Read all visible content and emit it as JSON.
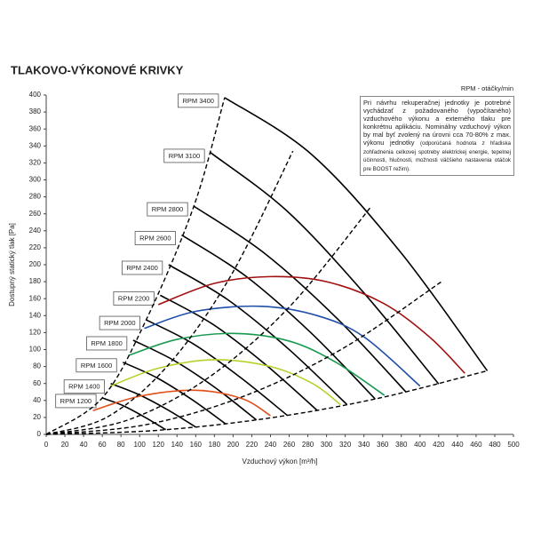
{
  "chart_data": {
    "type": "line",
    "title": "TLAKOVO-VÝKONOVÉ KRIVKY",
    "legend_title": "RPM - otáčky/min",
    "note": {
      "main": "Pri návrhu rekuperačnej jednotky je potrebné vychádzať z požadovaného (vypočítaného) vzduchového výkonu a externého tlaku pre konkrétnu aplikáciu. Nominálny vzduchový výkon by mal byť zvolený na úrovni cca 70-80% z max. výkonu jednotky",
      "small": "(odporúčaná hodnota z hľadiska zohľadnenia celkovej spotreby elektrickej energie, tepelnej účinnosti, hlučnosti, možnosti väčšieho nastavenia otáčok pre BOOST režim)."
    },
    "x_label": "Vzduchový výkon [m³/h]",
    "y_label": "Dostupný statický tlak [Pa]",
    "xlim": [
      0,
      500
    ],
    "ylim": [
      0,
      400
    ],
    "xticks": [
      0,
      20,
      40,
      60,
      80,
      100,
      120,
      140,
      160,
      180,
      200,
      220,
      240,
      260,
      280,
      300,
      320,
      340,
      360,
      380,
      400,
      420,
      440,
      460,
      480,
      500
    ],
    "yticks": [
      0,
      20,
      40,
      60,
      80,
      100,
      120,
      140,
      160,
      180,
      200,
      220,
      240,
      260,
      280,
      300,
      320,
      340,
      360,
      380,
      400
    ],
    "series": [
      {
        "name": "RPM 1200",
        "color": "#000000",
        "x": [
          60,
          82,
          106,
          128
        ],
        "values": [
          43,
          34,
          20,
          5.5
        ]
      },
      {
        "name": "RPM 1400",
        "color": "#000000",
        "x": [
          69,
          99,
          130,
          160
        ],
        "values": [
          60,
          47,
          29,
          8.6
        ]
      },
      {
        "name": "RPM 1600",
        "color": "#000000",
        "x": [
          82,
          118,
          156,
          192
        ],
        "values": [
          85,
          67,
          41,
          12.4
        ]
      },
      {
        "name": "RPM 1800",
        "color": "#000000",
        "x": [
          93,
          137,
          181,
          225
        ],
        "values": [
          111,
          87,
          55,
          17
        ]
      },
      {
        "name": "RPM 2000",
        "color": "#000000",
        "x": [
          107,
          157,
          208,
          258
        ],
        "values": [
          135,
          107,
          67,
          22.4
        ]
      },
      {
        "name": "RPM 2200",
        "color": "#000000",
        "x": [
          122,
          178,
          234,
          290
        ],
        "values": [
          164,
          130,
          83,
          28.3
        ]
      },
      {
        "name": "RPM 2400",
        "color": "#000000",
        "x": [
          131,
          194,
          259,
          322
        ],
        "values": [
          200,
          159,
          101,
          35
        ]
      },
      {
        "name": "RPM 2600",
        "color": "#000000",
        "x": [
          145,
          213,
          284,
          352
        ],
        "values": [
          235,
          187,
          119,
          41.8
        ]
      },
      {
        "name": "RPM 2800",
        "color": "#000000",
        "x": [
          158,
          233,
          310,
          385
        ],
        "values": [
          269,
          214,
          138,
          50
        ]
      },
      {
        "name": "RPM 3100",
        "color": "#000000",
        "x": [
          176,
          257,
          339,
          420
        ],
        "values": [
          332,
          264,
          168,
          59.4
        ]
      },
      {
        "name": "RPM 3400",
        "color": "#000000",
        "x": [
          191,
          284,
          379,
          472
        ],
        "values": [
          397,
          330,
          215,
          75
        ]
      },
      {
        "color": "#a01010",
        "x": [
          120,
          180,
          240,
          300,
          360,
          410,
          448
        ],
        "values": [
          153,
          178,
          186,
          180,
          155,
          115,
          72
        ]
      },
      {
        "color": "#1f4fa8",
        "x": [
          105,
          160,
          230,
          290,
          340,
          400
        ],
        "values": [
          125,
          145,
          151,
          140,
          115,
          57
        ]
      },
      {
        "color": "#1a9a50",
        "x": [
          88,
          140,
          200,
          260,
          310,
          362
        ],
        "values": [
          93,
          112,
          119,
          110,
          85,
          46
        ]
      },
      {
        "color": "#b8d02a",
        "x": [
          69,
          120,
          180,
          240,
          285,
          315
        ],
        "values": [
          57,
          78,
          88,
          80,
          60,
          35
        ]
      },
      {
        "color": "#e0501a",
        "x": [
          50,
          100,
          160,
          210,
          240
        ],
        "values": [
          28,
          45,
          52,
          42,
          22
        ]
      },
      {
        "color": "#000000",
        "dashed": true,
        "x": [
          0,
          60,
          107,
          158,
          191
        ],
        "values": [
          0,
          43,
          135,
          269,
          397
        ]
      },
      {
        "color": "#000000",
        "dashed": true,
        "x": [
          0,
          66,
          132,
          198,
          264
        ],
        "values": [
          0,
          20.9,
          83.5,
          187.8,
          334
        ]
      },
      {
        "color": "#000000",
        "dashed": true,
        "x": [
          0,
          87,
          174,
          261,
          348
        ],
        "values": [
          0,
          16.8,
          67.2,
          151.2,
          269
        ]
      },
      {
        "color": "#000000",
        "dashed": true,
        "x": [
          0,
          106,
          212,
          317,
          423
        ],
        "values": [
          0,
          11.3,
          45.2,
          101,
          180
        ]
      },
      {
        "color": "#000000",
        "dashed": true,
        "x": [
          0,
          118,
          236,
          354,
          472
        ],
        "values": [
          0,
          4.7,
          18.8,
          42.2,
          75
        ]
      }
    ]
  }
}
